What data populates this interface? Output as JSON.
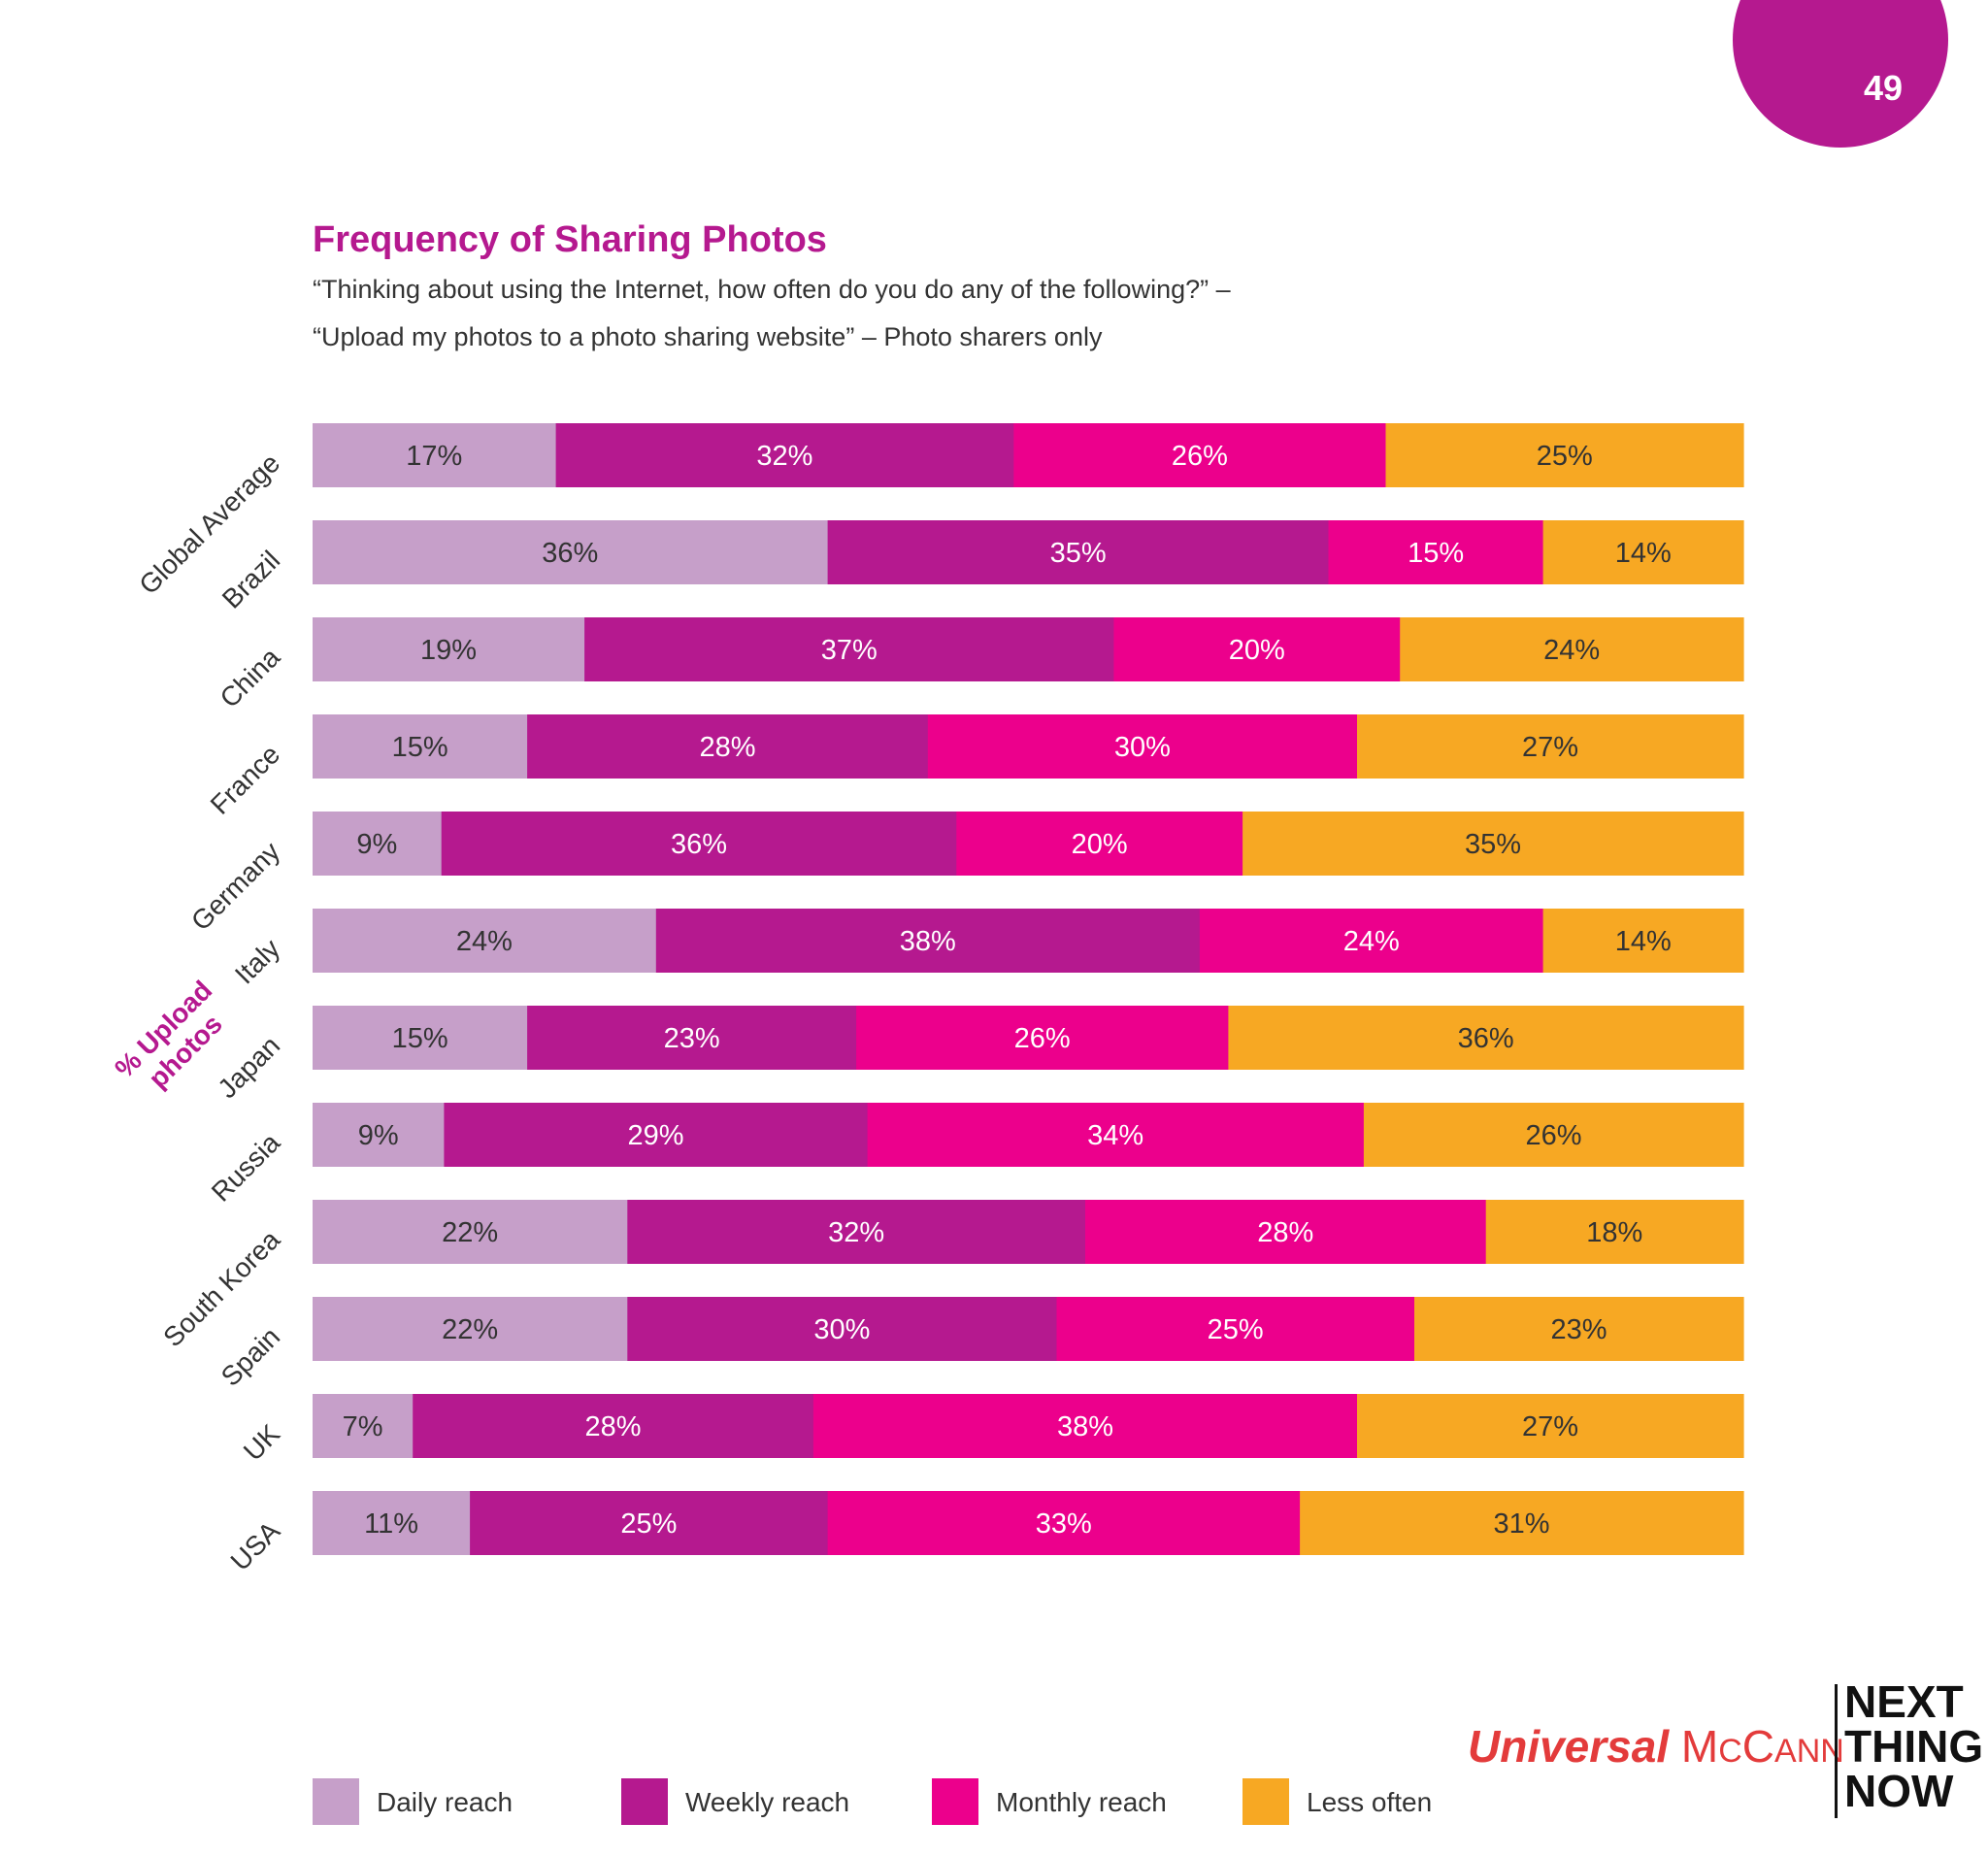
{
  "page_number": "49",
  "chart_data": {
    "type": "bar",
    "orientation": "horizontal",
    "stacked": true,
    "title": "Frequency of Sharing Photos",
    "subtitle_lines": [
      "“Thinking about using the Internet, how often do you do any of the following?” –",
      "“Upload my photos to a photo sharing website” – Photo sharers only"
    ],
    "ylabel": "% Upload photos",
    "categories": [
      "Global Average",
      "Brazil",
      "China",
      "France",
      "Germany",
      "Italy",
      "Japan",
      "Russia",
      "South Korea",
      "Spain",
      "UK",
      "USA"
    ],
    "series": [
      {
        "name": "Daily reach",
        "color": "#c69fc9",
        "values": [
          17,
          36,
          19,
          15,
          9,
          24,
          15,
          9,
          22,
          22,
          7,
          11
        ],
        "label_color": "#333333"
      },
      {
        "name": "Weekly reach",
        "color": "#b5198f",
        "values": [
          32,
          35,
          37,
          28,
          36,
          38,
          23,
          29,
          32,
          30,
          28,
          25
        ],
        "label_color": "#ffffff"
      },
      {
        "name": "Monthly reach",
        "color": "#ec008c",
        "values": [
          26,
          15,
          20,
          30,
          20,
          24,
          26,
          34,
          28,
          25,
          38,
          33
        ],
        "label_color": "#ffffff"
      },
      {
        "name": "Less often",
        "color": "#f7a823",
        "values": [
          25,
          14,
          24,
          27,
          35,
          14,
          36,
          26,
          18,
          23,
          27,
          31
        ],
        "label_color": "#333333"
      }
    ],
    "value_suffix": "%",
    "xlim": [
      0,
      100
    ],
    "legend_position": "bottom"
  },
  "brand": {
    "universal": "Universal",
    "mccann": "McCann",
    "next": "NEXT",
    "thing": "THING",
    "now": "NOW",
    "red": "#e33b3b"
  }
}
